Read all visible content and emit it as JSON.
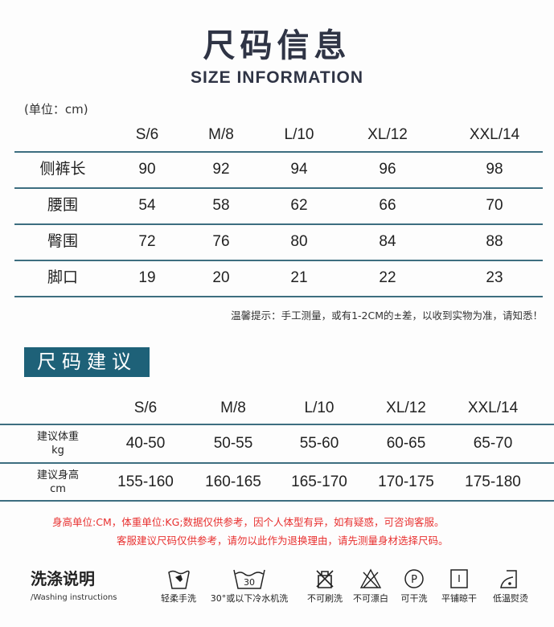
{
  "title": "尺码信息",
  "subtitle": "SIZE INFORMATION",
  "unit": "(单位：cm)",
  "size_table": {
    "headers": [
      "S/6",
      "M/8",
      "L/10",
      "XL/12",
      "XXL/14"
    ],
    "rows": [
      {
        "label": "侧裤长",
        "values": [
          "90",
          "92",
          "94",
          "96",
          "98"
        ]
      },
      {
        "label": "腰围",
        "values": [
          "54",
          "58",
          "62",
          "66",
          "70"
        ]
      },
      {
        "label": "臀围",
        "values": [
          "72",
          "76",
          "80",
          "84",
          "88"
        ]
      },
      {
        "label": "脚口",
        "values": [
          "19",
          "20",
          "21",
          "22",
          "23"
        ]
      }
    ]
  },
  "tip": "温馨提示：手工测量，或有1-2CM的±差，以收到实物为准，请知悉！",
  "recommend": {
    "title": "尺码建议",
    "headers": [
      "S/6",
      "M/8",
      "L/10",
      "XL/12",
      "XXL/14"
    ],
    "rows": [
      {
        "label": "建议体重",
        "unit": "kg",
        "values": [
          "40-50",
          "50-55",
          "55-60",
          "60-65",
          "65-70"
        ]
      },
      {
        "label": "建议身高",
        "unit": "cm",
        "values": [
          "155-160",
          "160-165",
          "165-170",
          "170-175",
          "175-180"
        ]
      }
    ]
  },
  "notes": [
    "身高单位:CM，体重单位:KG;数据仅供参考，因个人体型有异，如有疑惑，可咨询客服。",
    "客服建议尺码仅供参考，请勿以此作为退换理由，请先测量身材选择尺码。"
  ],
  "washing": {
    "title": "洗涤说明",
    "subtitle": "/Washing instructions",
    "items": [
      {
        "icon": "hand-wash-icon",
        "label": "轻柔手洗"
      },
      {
        "icon": "machine-wash-30-icon",
        "label": "30°或以下冷水机洗",
        "temp": "30"
      },
      {
        "icon": "no-brush-icon",
        "label": "不可刷洗"
      },
      {
        "icon": "no-bleach-icon",
        "label": "不可漂白"
      },
      {
        "icon": "dry-clean-icon",
        "label": "可干洗",
        "letter": "P"
      },
      {
        "icon": "dry-flat-icon",
        "label": "平铺晾干"
      },
      {
        "icon": "low-iron-icon",
        "label": "低温熨烫"
      }
    ]
  },
  "colors": {
    "accent": "#1e6178",
    "note": "#e8302f",
    "title": "#2f3445"
  }
}
